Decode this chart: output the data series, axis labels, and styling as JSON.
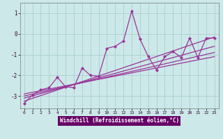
{
  "xlabel": "Windchill (Refroidissement éolien,°C)",
  "background_color": "#cce8e8",
  "grid_color": "#aacfcf",
  "line_color": "#993399",
  "label_bg_color": "#660066",
  "label_text_color": "#ffffff",
  "x_data": [
    0,
    1,
    2,
    3,
    4,
    5,
    6,
    7,
    8,
    9,
    10,
    11,
    12,
    13,
    14,
    15,
    16,
    17,
    18,
    19,
    20,
    21,
    22,
    23
  ],
  "y_main": [
    -3.35,
    -2.95,
    -2.7,
    -2.6,
    -2.1,
    -2.55,
    -2.6,
    -1.65,
    -2.0,
    -2.05,
    -0.7,
    -0.6,
    -0.35,
    1.1,
    -0.25,
    -1.1,
    -1.75,
    -1.1,
    -0.85,
    -1.15,
    -0.2,
    -1.15,
    -0.2,
    -0.2
  ],
  "trend_lines": [
    {
      "x0": 0,
      "y0": -3.25,
      "x1": 23,
      "y1": -0.15
    },
    {
      "x0": 0,
      "y0": -3.1,
      "x1": 23,
      "y1": -0.6
    },
    {
      "x0": 0,
      "y0": -3.0,
      "x1": 23,
      "y1": -0.9
    },
    {
      "x0": 0,
      "y0": -2.9,
      "x1": 23,
      "y1": -1.1
    }
  ],
  "ylim": [
    -3.6,
    1.5
  ],
  "xlim": [
    -0.5,
    23.5
  ],
  "yticks": [
    -3,
    -2,
    -1,
    0,
    1
  ],
  "xticks": [
    0,
    1,
    2,
    3,
    4,
    5,
    6,
    7,
    8,
    9,
    10,
    11,
    12,
    13,
    14,
    15,
    16,
    17,
    18,
    19,
    20,
    21,
    22,
    23
  ]
}
